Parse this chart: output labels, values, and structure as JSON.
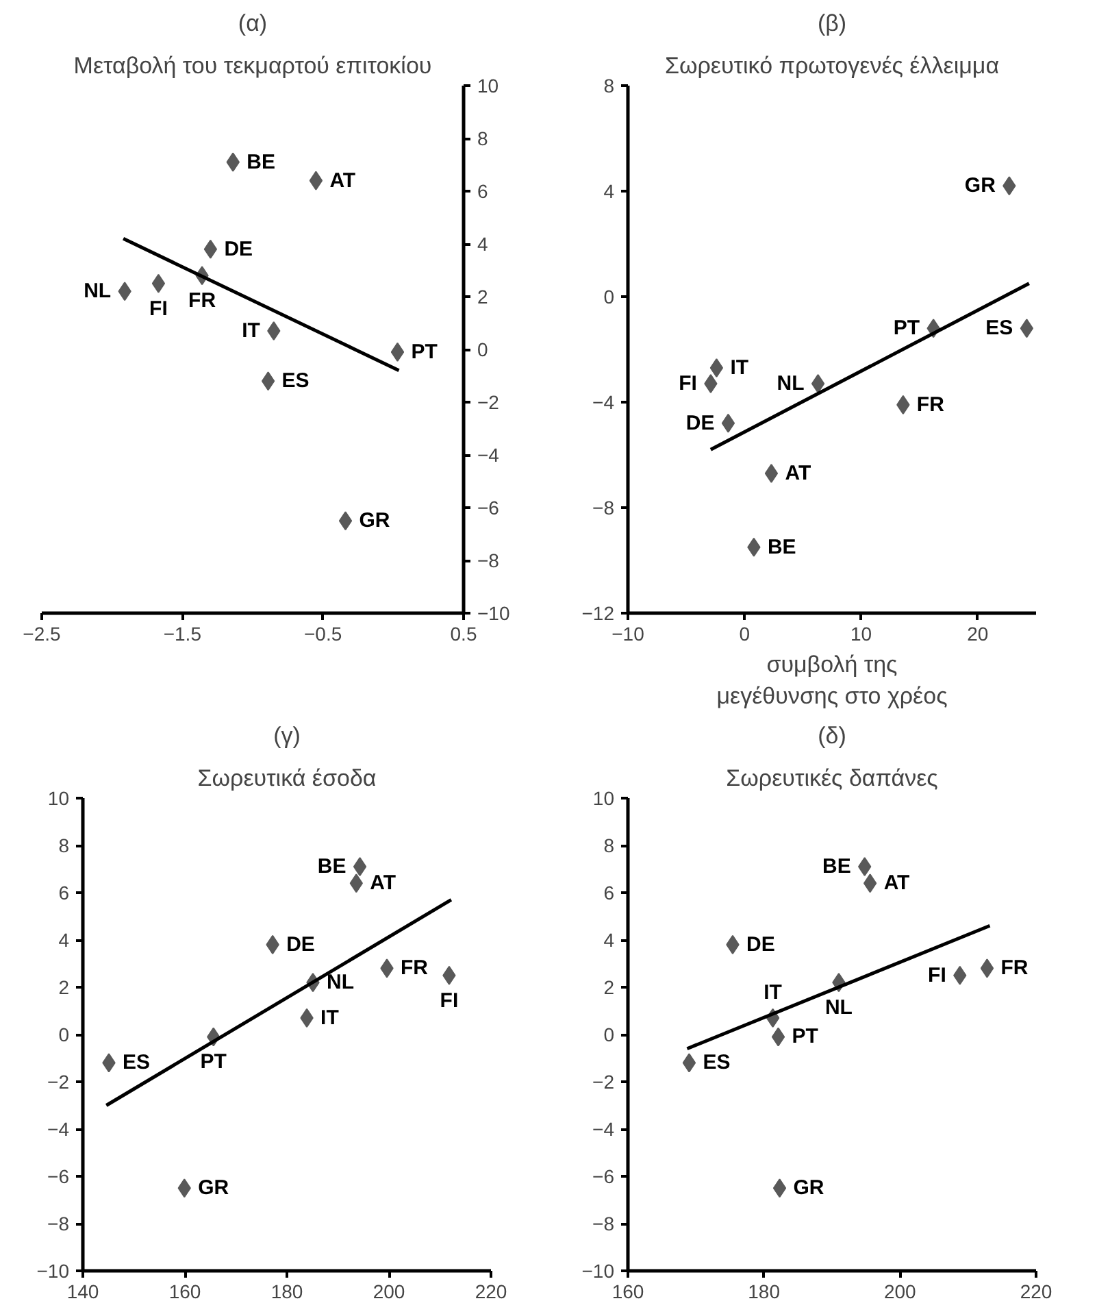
{
  "chart_data": [
    {
      "type": "scatter",
      "title": "(α)",
      "subtitle": "Μεταβολή του τεκμαρτού επιτοκίου",
      "marker": "diamond",
      "grid": false,
      "xlim": [
        -2.5,
        0.5
      ],
      "xticks": [
        -2.5,
        -1.5,
        -0.5,
        0.5
      ],
      "ylim": [
        -10,
        10
      ],
      "yticks": [
        -10,
        -8,
        -6,
        -4,
        -2,
        0,
        2,
        4,
        6,
        8,
        10
      ],
      "series": [
        {
          "color": "#595959",
          "x": [
            -1.91,
            -1.67,
            -1.36,
            -1.3,
            -1.14,
            -0.55,
            -0.85,
            -0.89,
            0.03,
            -0.34
          ],
          "values": [
            2.2,
            2.5,
            2.8,
            3.8,
            7.1,
            6.4,
            0.7,
            -1.2,
            -0.1,
            -6.5
          ]
        },
        {
          "type": "line",
          "marker": "none",
          "color": "#000000",
          "x": [
            -1.92,
            0.04
          ],
          "values": [
            4.2,
            -0.8
          ]
        }
      ],
      "annotations": [
        {
          "text": "NL",
          "x": -1.91,
          "y": 2.2
        },
        {
          "text": "FI",
          "x": -1.67,
          "y": 2.5
        },
        {
          "text": "FR",
          "x": -1.36,
          "y": 2.8
        },
        {
          "text": "DE",
          "x": -1.3,
          "y": 3.8
        },
        {
          "text": "BE",
          "x": -1.14,
          "y": 7.1
        },
        {
          "text": "AT",
          "x": -0.55,
          "y": 6.4
        },
        {
          "text": "IT",
          "x": -0.85,
          "y": 0.7
        },
        {
          "text": "ES",
          "x": -0.89,
          "y": -1.2
        },
        {
          "text": "PT",
          "x": 0.03,
          "y": -0.1
        },
        {
          "text": "GR",
          "x": -0.34,
          "y": -6.5
        }
      ]
    },
    {
      "type": "scatter",
      "title": "(β)",
      "subtitle": "Σωρευτικό πρωτογενές έλλειμμα",
      "xlabel": "συμβολή της μεγέθυνσης στο χρέος",
      "marker": "diamond",
      "grid": false,
      "xlim": [
        -10,
        25
      ],
      "xticks": [
        -10,
        0,
        10,
        20
      ],
      "ylim": [
        -12,
        8
      ],
      "yticks": [
        -12,
        -8,
        -4,
        0,
        4,
        8
      ],
      "series": [
        {
          "color": "#595959",
          "x": [
            22.7,
            24.2,
            16.2,
            13.6,
            6.3,
            -2.4,
            -2.9,
            -1.4,
            2.3,
            0.8
          ],
          "values": [
            4.2,
            -1.2,
            -1.2,
            -4.1,
            -3.3,
            -2.7,
            -3.3,
            -4.8,
            -6.7,
            -9.5
          ]
        },
        {
          "type": "line",
          "marker": "none",
          "color": "#000000",
          "x": [
            -2.9,
            24.4
          ],
          "values": [
            -5.8,
            0.5
          ]
        }
      ],
      "annotations": [
        {
          "text": "GR",
          "x": 22.7,
          "y": 4.2
        },
        {
          "text": "ES",
          "x": 24.2,
          "y": -1.2
        },
        {
          "text": "PT",
          "x": 16.2,
          "y": -1.2
        },
        {
          "text": "FR",
          "x": 13.6,
          "y": -4.1
        },
        {
          "text": "NL",
          "x": 6.3,
          "y": -3.3
        },
        {
          "text": "IT",
          "x": -2.4,
          "y": -2.7
        },
        {
          "text": "FI",
          "x": -2.9,
          "y": -3.3
        },
        {
          "text": "DE",
          "x": -1.4,
          "y": -4.8
        },
        {
          "text": "AT",
          "x": 2.3,
          "y": -6.7
        },
        {
          "text": "BE",
          "x": 0.8,
          "y": -9.5
        }
      ]
    },
    {
      "type": "scatter",
      "title": "(γ)",
      "subtitle": "Σωρευτικά έσοδα",
      "marker": "diamond",
      "grid": false,
      "xlim": [
        140,
        220
      ],
      "xticks": [
        140,
        160,
        180,
        200,
        220
      ],
      "ylim": [
        -10,
        10
      ],
      "yticks": [
        -10,
        -8,
        -6,
        -4,
        -2,
        0,
        2,
        4,
        6,
        8,
        10
      ],
      "series": [
        {
          "color": "#595959",
          "x": [
            145.1,
            165.6,
            159.9,
            177.2,
            183.9,
            185.1,
            193.6,
            194.3,
            199.6,
            211.8
          ],
          "values": [
            -1.2,
            -0.1,
            -6.5,
            3.8,
            0.7,
            2.2,
            6.4,
            7.1,
            2.8,
            2.5
          ]
        },
        {
          "type": "line",
          "marker": "none",
          "color": "#000000",
          "x": [
            144.6,
            212.2
          ],
          "values": [
            -3.0,
            5.7
          ]
        }
      ],
      "annotations": [
        {
          "text": "ES",
          "x": 145.1,
          "y": -1.2
        },
        {
          "text": "PT",
          "x": 165.6,
          "y": -0.1
        },
        {
          "text": "GR",
          "x": 159.9,
          "y": -6.5
        },
        {
          "text": "DE",
          "x": 177.2,
          "y": 3.8
        },
        {
          "text": "IT",
          "x": 183.9,
          "y": 0.7
        },
        {
          "text": "NL",
          "x": 185.1,
          "y": 2.2
        },
        {
          "text": "AT",
          "x": 193.6,
          "y": 6.4
        },
        {
          "text": "BE",
          "x": 194.3,
          "y": 7.1
        },
        {
          "text": "FR",
          "x": 199.6,
          "y": 2.8
        },
        {
          "text": "FI",
          "x": 211.8,
          "y": 2.5
        }
      ]
    },
    {
      "type": "scatter",
      "title": "(δ)",
      "subtitle": "Σωρευτικές δαπάνες",
      "marker": "diamond",
      "grid": false,
      "xlim": [
        160,
        220
      ],
      "xticks": [
        160,
        180,
        200,
        220
      ],
      "ylim": [
        -10,
        10
      ],
      "yticks": [
        -10,
        -8,
        -6,
        -4,
        -2,
        0,
        2,
        4,
        6,
        8,
        10
      ],
      "series": [
        {
          "color": "#595959",
          "x": [
            169.0,
            175.4,
            181.3,
            182.1,
            182.3,
            191.0,
            194.8,
            195.6,
            208.8,
            212.8
          ],
          "values": [
            -1.2,
            3.8,
            0.7,
            -0.1,
            -6.5,
            2.2,
            7.1,
            6.4,
            2.5,
            2.8
          ]
        },
        {
          "type": "line",
          "marker": "none",
          "color": "#000000",
          "x": [
            168.7,
            213.2
          ],
          "values": [
            -0.6,
            4.6
          ]
        }
      ],
      "annotations": [
        {
          "text": "ES",
          "x": 169.0,
          "y": -1.2
        },
        {
          "text": "DE",
          "x": 175.4,
          "y": 3.8
        },
        {
          "text": "IT",
          "x": 181.3,
          "y": 0.7
        },
        {
          "text": "PT",
          "x": 182.1,
          "y": -0.1
        },
        {
          "text": "GR",
          "x": 182.3,
          "y": -6.5
        },
        {
          "text": "NL",
          "x": 191.0,
          "y": 2.2
        },
        {
          "text": "BE",
          "x": 194.8,
          "y": 7.1
        },
        {
          "text": "AT",
          "x": 195.6,
          "y": 6.4
        },
        {
          "text": "FI",
          "x": 208.8,
          "y": 2.5
        },
        {
          "text": "FR",
          "x": 212.8,
          "y": 2.8
        }
      ]
    }
  ]
}
